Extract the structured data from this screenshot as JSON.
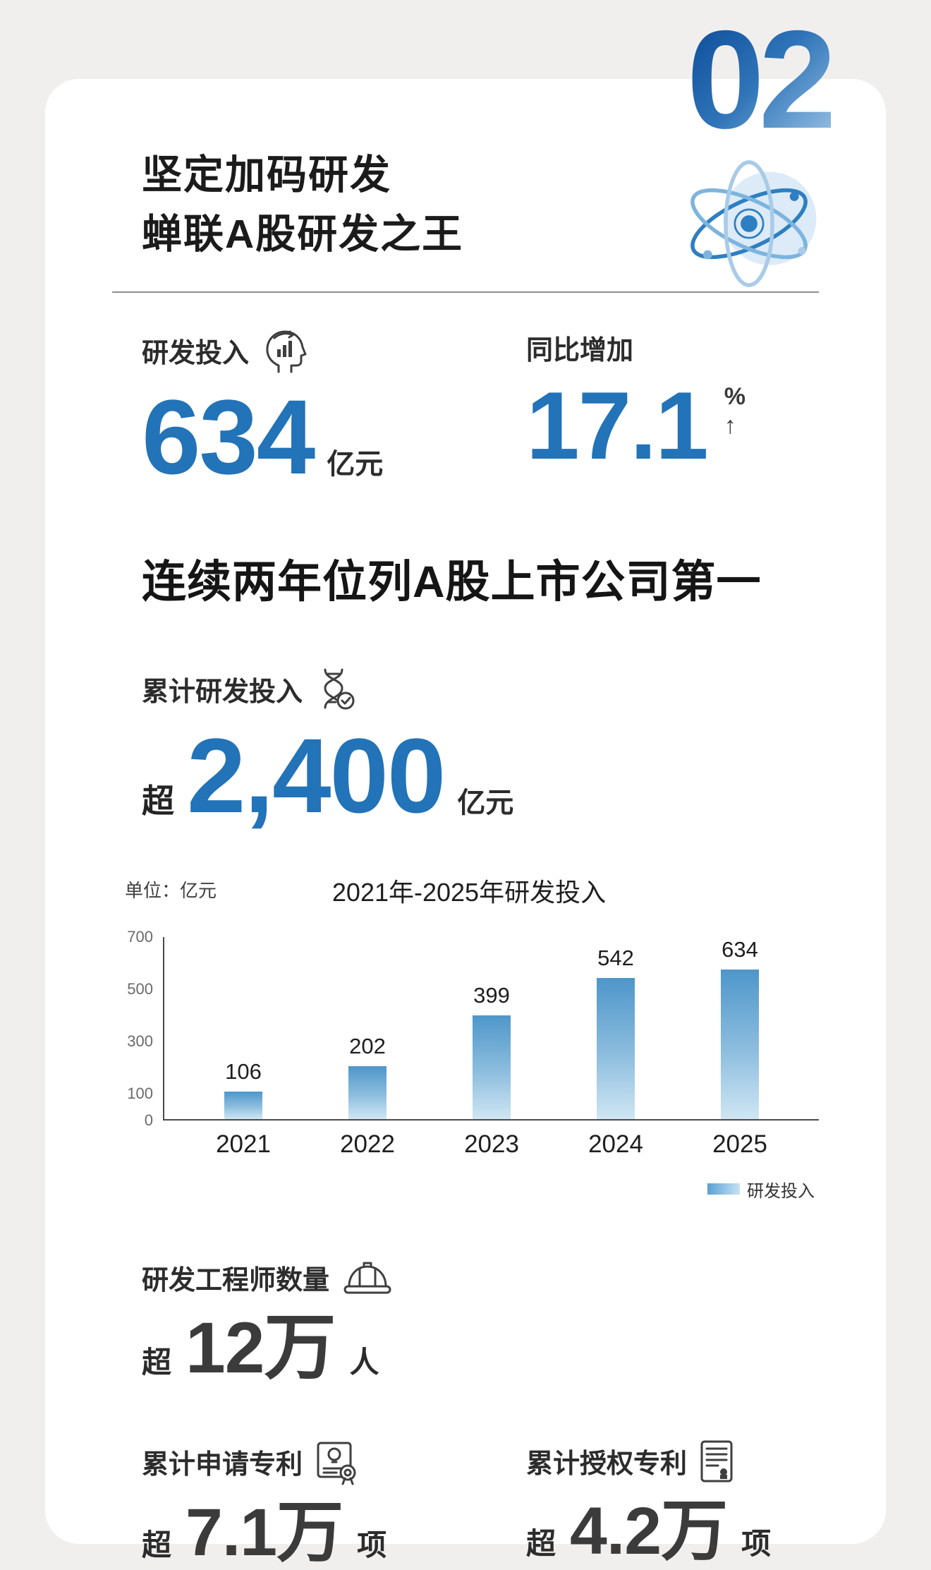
{
  "page": {
    "section_number": "02",
    "title_line1": "坚定加码研发",
    "title_line2": "蝉联A股研发之王"
  },
  "stats": {
    "rnd": {
      "label": "研发投入",
      "value": "634",
      "unit": "亿元"
    },
    "yoy": {
      "label": "同比增加",
      "value": "17.1",
      "percent": "%",
      "arrow": "↑"
    }
  },
  "headline": "连续两年位列A股上市公司第一",
  "cumulative": {
    "label": "累计研发投入",
    "prefix": "超",
    "value": "2,400",
    "unit": "亿元"
  },
  "chart_data": {
    "type": "bar",
    "title": "2021年-2025年研发投入",
    "unit_label": "单位：亿元",
    "categories": [
      "2021",
      "2022",
      "2023",
      "2024",
      "2025"
    ],
    "values": [
      106,
      202,
      399,
      542,
      634
    ],
    "series": [
      {
        "name": "研发投入",
        "values": [
          106,
          202,
          399,
          542,
          634
        ]
      }
    ],
    "legend_label": "研发投入",
    "legend_position": "bottom-right",
    "xlabel": "",
    "ylabel": "亿元",
    "ylim": [
      0,
      700
    ],
    "yticks": [
      0,
      100,
      300,
      500,
      700
    ],
    "grid": false,
    "bar_gradient_top": "#4e96ca",
    "bar_gradient_bottom": "#cfe6f4"
  },
  "engineers": {
    "label": "研发工程师数量",
    "prefix": "超",
    "value": "12万",
    "unit": "人"
  },
  "patents": {
    "applied": {
      "label": "累计申请专利",
      "prefix": "超",
      "value": "7.1万",
      "unit": "项"
    },
    "granted": {
      "label": "累计授权专利",
      "prefix": "超",
      "value": "4.2万",
      "unit": "项"
    }
  },
  "icons": {
    "header": "atom-orbit",
    "rnd": "head-with-bar-chart",
    "cumulative": "dna-with-check",
    "engineers": "hard-hat",
    "patent_applied": "certificate-with-rosette",
    "patent_granted": "document-with-seal"
  },
  "colors": {
    "accent_blue": "#2273b8",
    "number_dark": "#3b3b3b",
    "background_gray": "#f1efee",
    "card_white": "#ffffff"
  }
}
